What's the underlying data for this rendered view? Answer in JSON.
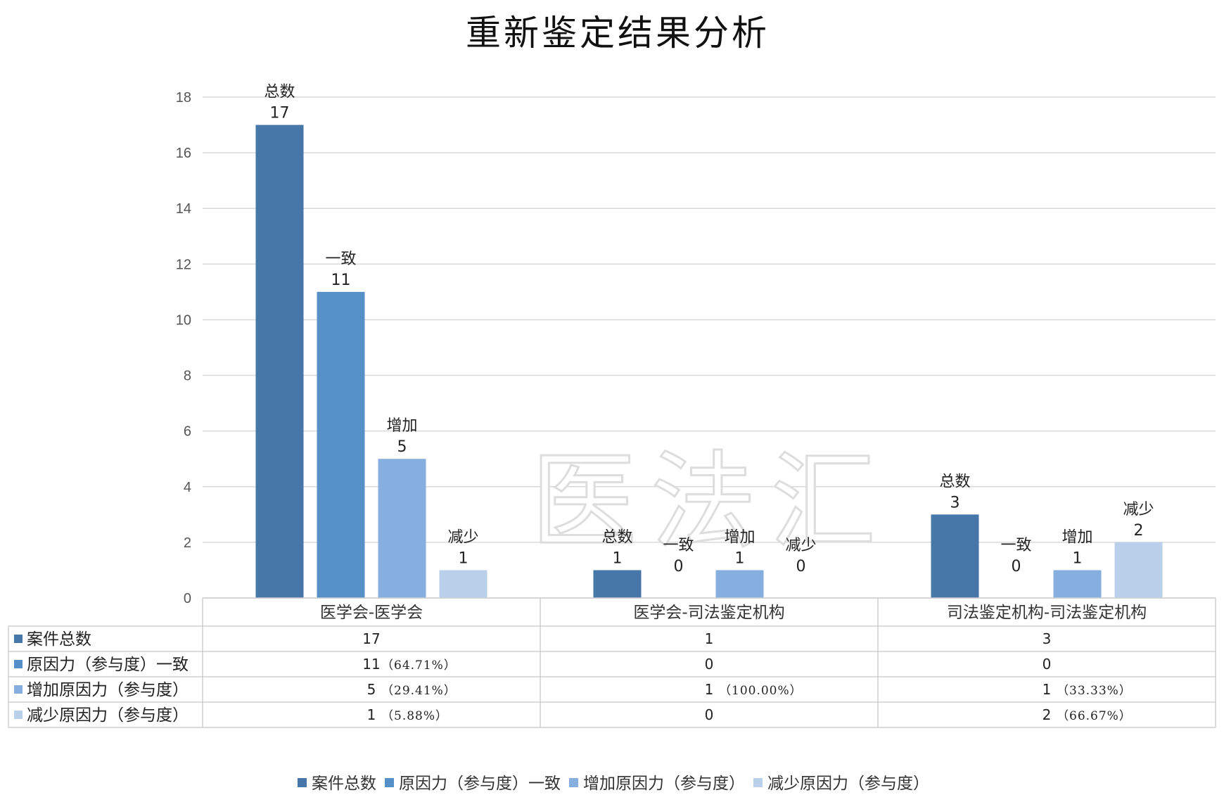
{
  "chart_data": {
    "type": "bar",
    "title": "重新鉴定结果分析",
    "watermark": "医法汇",
    "categories": [
      "医学会-医学会",
      "医学会-司法鉴定机构",
      "司法鉴定机构-司法鉴定机构"
    ],
    "ylim": [
      0,
      18
    ],
    "yticks": [
      "0",
      "2",
      "4",
      "6",
      "8",
      "10",
      "12",
      "14",
      "16",
      "18"
    ],
    "grid": true,
    "legend_position": "bottom",
    "series": [
      {
        "name": "案件总数",
        "short": "总数",
        "color": "#4677a8",
        "values": [
          17,
          1,
          3
        ],
        "table": [
          "17",
          "1",
          "3"
        ],
        "table_pct": [
          "",
          "",
          ""
        ]
      },
      {
        "name": "原因力（参与度）一致",
        "short": "一致",
        "color": "#5590c8",
        "values": [
          11,
          0,
          0
        ],
        "table": [
          "11",
          "0",
          "0"
        ],
        "table_pct": [
          "（64.71%）",
          "",
          ""
        ]
      },
      {
        "name": "增加原因力（参与度）",
        "short": "增加",
        "color": "#86afdf",
        "values": [
          5,
          1,
          1
        ],
        "table": [
          "5",
          "1",
          "1"
        ],
        "table_pct": [
          "（29.41%）",
          "（100.00%）",
          "（33.33%）"
        ]
      },
      {
        "name": "减少原因力（参与度）",
        "short": "减少",
        "color": "#b9cfea",
        "values": [
          1,
          0,
          2
        ],
        "table": [
          "1",
          "0",
          "2"
        ],
        "table_pct": [
          "（5.88%）",
          "",
          "（66.67%）"
        ]
      }
    ]
  }
}
